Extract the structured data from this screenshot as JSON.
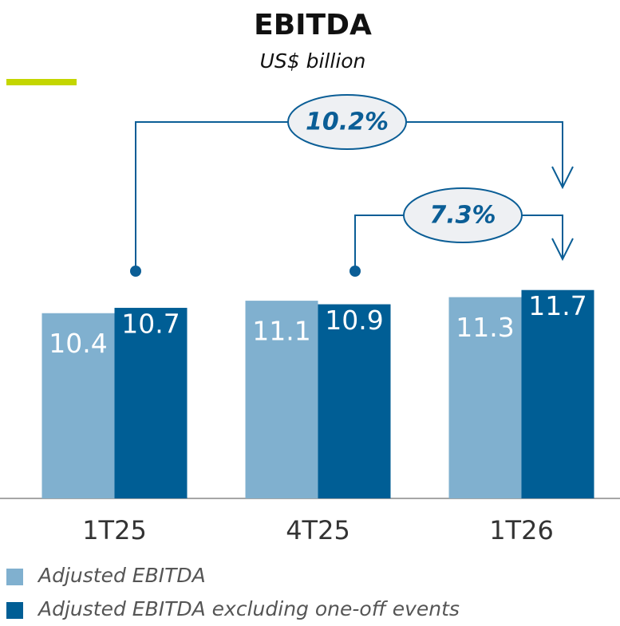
{
  "chart_data": {
    "type": "bar",
    "title": "EBITDA",
    "subtitle": "US$ billion",
    "categories": [
      "1T25",
      "4T25",
      "1T26"
    ],
    "series": [
      {
        "name": "Adjusted EBITDA",
        "color": "#80b0cf",
        "values": [
          10.4,
          11.1,
          11.3
        ]
      },
      {
        "name": "Adjusted EBITDA excluding one-off events",
        "color": "#005e95",
        "values": [
          10.7,
          10.9,
          11.7
        ]
      }
    ],
    "ylim": [
      0,
      15
    ],
    "annotations": [
      "10.2%",
      "7.3%"
    ]
  }
}
